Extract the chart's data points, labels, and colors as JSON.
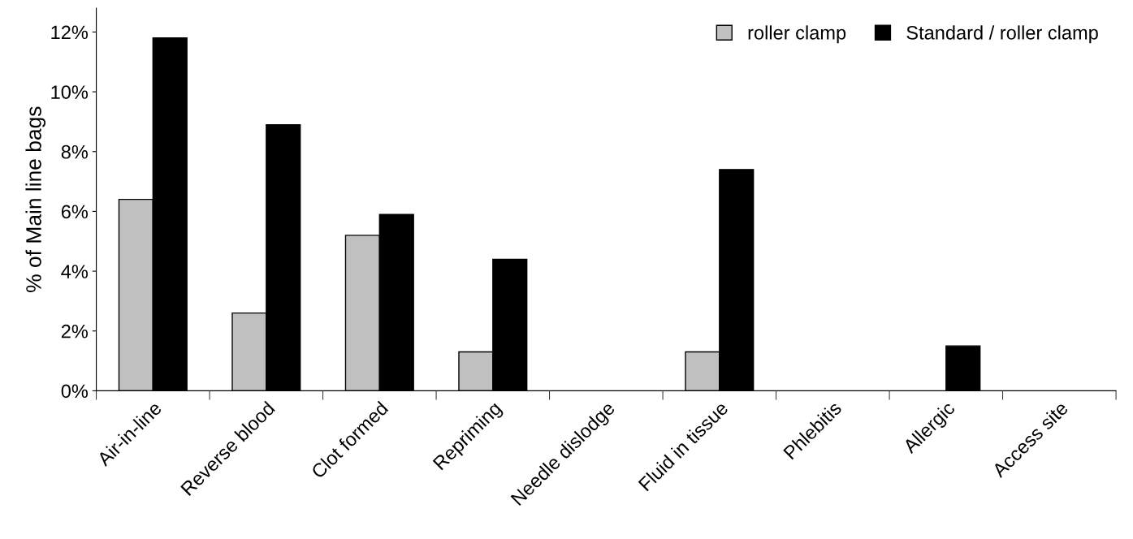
{
  "chart_data": {
    "type": "bar",
    "ylabel": "% of Main line bags",
    "categories": [
      "Air-in-line",
      "Reverse blood",
      "Clot formed",
      "Repriming",
      "Needle dislodge",
      "Fluid in tissue",
      "Phlebitis",
      "Allergic",
      "Access site"
    ],
    "series": [
      {
        "name": "roller clamp",
        "color": "#c0c0c0",
        "values": [
          6.4,
          2.6,
          5.2,
          1.3,
          0,
          1.3,
          0,
          0,
          0
        ]
      },
      {
        "name": "Standard / roller clamp",
        "color": "#000000",
        "values": [
          11.8,
          8.9,
          5.9,
          4.4,
          0,
          7.4,
          0,
          1.5,
          0
        ]
      }
    ],
    "ylim": [
      0,
      12.8
    ],
    "yticks": [
      {
        "value": 0,
        "label": "0%"
      },
      {
        "value": 2,
        "label": "2%"
      },
      {
        "value": 4,
        "label": "4%"
      },
      {
        "value": 6,
        "label": "6%"
      },
      {
        "value": 8,
        "label": "8%"
      },
      {
        "value": 10,
        "label": "10%"
      },
      {
        "value": 12,
        "label": "12%"
      }
    ],
    "grid": false,
    "legend": "top right"
  }
}
